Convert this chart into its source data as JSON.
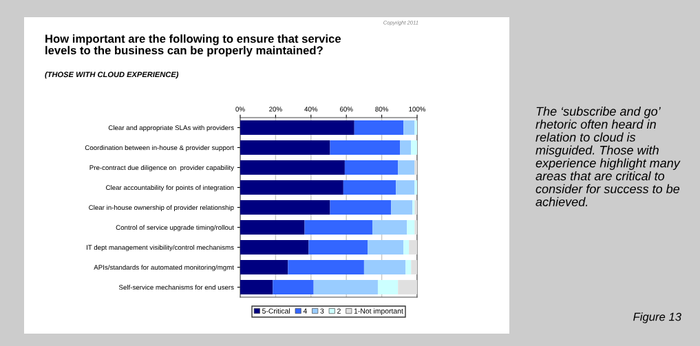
{
  "chart_data": {
    "type": "bar",
    "orientation": "horizontal",
    "stacked": true,
    "title": "How important are the following to ensure that service levels to the business can be properly maintained?",
    "subtitle": "(THOSE WITH CLOUD EXPERIENCE)",
    "categories": [
      "Clear and appropriate SLAs with providers",
      "Coordination between in-house & provider support",
      "Pre-contract due diligence on  provider capability",
      "Clear accountability for points of integration",
      "Clear in-house ownership of provider relationship",
      "Control of service upgrade timing/rollout",
      "IT dept management visibility/control mechanisms",
      "APIs/standards for automated monitoring/mgmt",
      "Self-service mechanisms for end users"
    ],
    "series": [
      {
        "name": "5-Critical",
        "color": "#000080",
        "values": [
          64.5,
          50.8,
          59.1,
          58.3,
          50.8,
          36.4,
          38.7,
          27.0,
          18.4
        ]
      },
      {
        "name": "4",
        "color": "#3366ff",
        "values": [
          27.8,
          39.6,
          30.1,
          29.7,
          34.5,
          38.3,
          33.3,
          43.0,
          23.1
        ]
      },
      {
        "name": "3",
        "color": "#99ccff",
        "values": [
          6.3,
          6.2,
          9.4,
          10.6,
          12.1,
          19.6,
          20.3,
          23.5,
          36.3
        ]
      },
      {
        "name": "2",
        "color": "#ccffff",
        "values": [
          1.4,
          3.4,
          0,
          1.4,
          1.2,
          4.3,
          3.1,
          3.1,
          11.4
        ]
      },
      {
        "name": "1-Not important",
        "color": "#e0e0e0",
        "values": [
          0,
          0,
          1.4,
          0,
          1.4,
          1.4,
          4.6,
          3.4,
          10.8
        ]
      }
    ],
    "xlim": [
      0,
      100
    ],
    "xticks": [
      {
        "value": 0,
        "label": "0%"
      },
      {
        "value": 20,
        "label": "20%"
      },
      {
        "value": 40,
        "label": "40%"
      },
      {
        "value": 60,
        "label": "60%"
      },
      {
        "value": 80,
        "label": "80%"
      },
      {
        "value": 100,
        "label": "100%"
      }
    ],
    "grid": "x",
    "legend": "bottom",
    "annotations": [
      "Copyright 2011",
      "The ‘subscribe and go’ rhetoric often heard in relation to cloud is misguided. Those with experience highlight many areas that are critical to consider for success to be achieved.",
      "Figure 13"
    ]
  }
}
